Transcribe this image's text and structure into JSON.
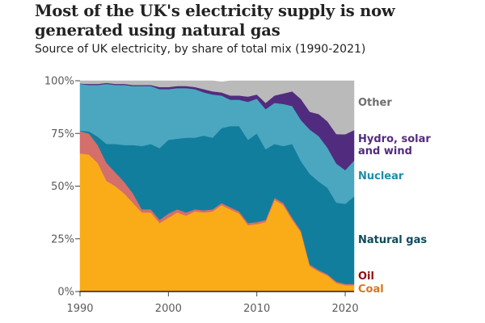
{
  "header": {
    "title": "Most of the UK's electricity supply is now generated using natural gas",
    "subtitle": "Source of UK electricity, by share of total mix (1990-2021)"
  },
  "chart_data": {
    "type": "area",
    "stacked": true,
    "title": "Most of the UK's electricity supply is now generated using natural gas",
    "subtitle": "Source of UK electricity, by share of total mix (1990-2021)",
    "xlabel": "",
    "ylabel": "",
    "x": [
      1990,
      1991,
      1992,
      1993,
      1994,
      1995,
      1996,
      1997,
      1998,
      1999,
      2000,
      2001,
      2002,
      2003,
      2004,
      2005,
      2006,
      2007,
      2008,
      2009,
      2010,
      2011,
      2012,
      2013,
      2014,
      2015,
      2016,
      2017,
      2018,
      2019,
      2020,
      2021
    ],
    "xlim": [
      1990,
      2021
    ],
    "ylim": [
      0,
      100
    ],
    "x_ticks": [
      "1990",
      "2000",
      "2010",
      "2020"
    ],
    "y_ticks": [
      "0%",
      "25%",
      "50%",
      "75%",
      "100%"
    ],
    "grid": false,
    "legend_placement": "right (direct labels)",
    "series": [
      {
        "name": "Coal",
        "color": "#faab18",
        "values": [
          65.5,
          65,
          61,
          52.5,
          50,
          46.5,
          42,
          37.5,
          37.5,
          32.5,
          35,
          37.5,
          36,
          38,
          37.5,
          38,
          41,
          39,
          37,
          31.5,
          32,
          33,
          43.5,
          41,
          34,
          28,
          12,
          9.5,
          7.5,
          4,
          3,
          3
        ]
      },
      {
        "name": "Oil",
        "color": "#d46f6b",
        "values": [
          10.5,
          10,
          8.5,
          8.5,
          6.5,
          5.5,
          4.5,
          1.5,
          1.5,
          1.5,
          2,
          1.5,
          1.5,
          1,
          1,
          1,
          1,
          1,
          1,
          1,
          1,
          1,
          1,
          1,
          1,
          0.8,
          0.8,
          0.7,
          0.7,
          0.7,
          0.6,
          0.6
        ]
      },
      {
        "name": "Natural gas",
        "color": "#127e9d",
        "values": [
          0.3,
          1,
          4,
          9,
          13.5,
          17.5,
          23,
          30,
          31,
          34,
          35,
          33.5,
          35.5,
          34,
          35.5,
          34,
          35.5,
          38.5,
          40.5,
          39.5,
          42,
          33.5,
          25.5,
          27,
          35,
          33,
          43,
          42,
          41,
          37.5,
          38,
          41.5
        ]
      },
      {
        "name": "Nuclear",
        "color": "#4ba7c0",
        "values": [
          22.2,
          22,
          24.5,
          28.5,
          28,
          28.5,
          28,
          28.5,
          27.5,
          28,
          24,
          24,
          23.5,
          23,
          20.5,
          20.5,
          15.5,
          12.5,
          12.5,
          18,
          16.5,
          19,
          19.5,
          20,
          18,
          19.5,
          21,
          21.5,
          19,
          18.5,
          16,
          17
        ]
      },
      {
        "name": "Hydro, solar and wind",
        "color": "#512c7e",
        "values": [
          0.2,
          0.5,
          0.5,
          0.5,
          0.5,
          0.5,
          0.5,
          0.5,
          0.5,
          1,
          1,
          1,
          1,
          1,
          1.5,
          1.5,
          1.5,
          2,
          2,
          2.5,
          2,
          3,
          3.5,
          5,
          7,
          10,
          8.5,
          10.5,
          12.5,
          14,
          17,
          14.5
        ]
      },
      {
        "name": "Other",
        "color": "#bababa",
        "values": [
          1.3,
          1.5,
          1.5,
          1,
          1.5,
          1.5,
          2,
          2,
          2,
          3,
          3,
          2.5,
          2.5,
          3,
          4,
          5,
          5,
          7,
          7,
          7.5,
          6.5,
          10.5,
          7,
          6,
          5,
          8.7,
          14.7,
          15.8,
          19.3,
          25.3,
          25.4,
          23.4
        ]
      }
    ],
    "legend": [
      {
        "name": "Other",
        "color": "#6e6e6e"
      },
      {
        "name": "Hydro, solar and wind",
        "color": "#512c7e",
        "lines": [
          "Hydro, solar",
          "and wind"
        ]
      },
      {
        "name": "Nuclear",
        "color": "#1f8cab"
      },
      {
        "name": "Natural gas",
        "color": "#0e4a5c"
      },
      {
        "name": "Oil",
        "color": "#8f0d12"
      },
      {
        "name": "Coal",
        "color": "#d9761c"
      }
    ]
  }
}
